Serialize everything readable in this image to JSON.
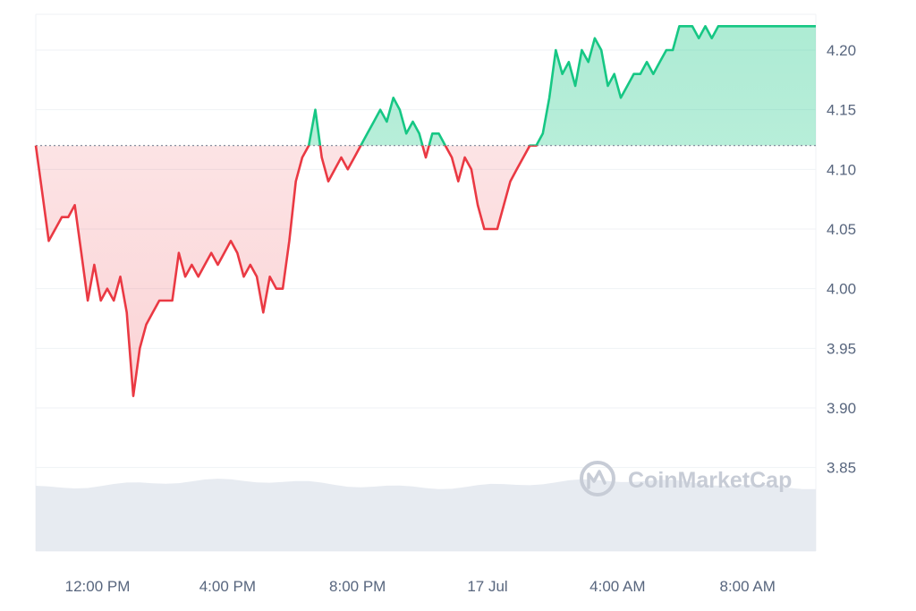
{
  "watermark": "CoinMarketCap",
  "colors": {
    "up": "#16c784",
    "down": "#ea3943",
    "up_fill": "#16c784",
    "down_fill": "#ea3943",
    "grid": "#eff2f5",
    "baseline": "#7a8496",
    "volume": "#e3e8ef"
  },
  "chart_data": {
    "type": "line",
    "baseline": 4.12,
    "x_ticks": [
      "12:00 PM",
      "4:00 PM",
      "8:00 PM",
      "17 Jul",
      "4:00 AM",
      "8:00 AM"
    ],
    "x_tick_hours": [
      12,
      16,
      20,
      24,
      28,
      32
    ],
    "y_ticks": [
      "4.20",
      "4.15",
      "4.10",
      "4.05",
      "4.00",
      "3.95",
      "3.90",
      "3.85"
    ],
    "ylim": [
      3.78,
      4.23
    ],
    "xlim": [
      10.1,
      34.1
    ],
    "series": [
      {
        "x": [
          10.1,
          10.3,
          10.5,
          10.7,
          10.9,
          11.1,
          11.3,
          11.5,
          11.7,
          11.9,
          12.1,
          12.3,
          12.5,
          12.7,
          12.9,
          13.1,
          13.3,
          13.5,
          13.7,
          13.9,
          14.1,
          14.3,
          14.5,
          14.7,
          14.9,
          15.1,
          15.3,
          15.5,
          15.7,
          15.9,
          16.1,
          16.3,
          16.5,
          16.7,
          16.9,
          17.1,
          17.3,
          17.5,
          17.7,
          17.9,
          18.1,
          18.3,
          18.5,
          18.7,
          18.9,
          19.1,
          19.3,
          19.5,
          19.7,
          19.9,
          20.1,
          20.3,
          20.5,
          20.7,
          20.9,
          21.1,
          21.3,
          21.5,
          21.7,
          21.9,
          22.1,
          22.3,
          22.5,
          22.7,
          22.9,
          23.1,
          23.3,
          23.5,
          23.7,
          23.9,
          24.1,
          24.3,
          24.5,
          24.7,
          24.9,
          25.1,
          25.3,
          25.5,
          25.7,
          25.9,
          26.1,
          26.3,
          26.5,
          26.7,
          26.9,
          27.1,
          27.3,
          27.5,
          27.7,
          27.9,
          28.1,
          28.3,
          28.5,
          28.7,
          28.9,
          29.1,
          29.3,
          29.5,
          29.7,
          29.9,
          30.1,
          30.3,
          30.5,
          30.7,
          30.9,
          31.1,
          31.3,
          31.5,
          31.7,
          31.9,
          32.1,
          32.3,
          32.5,
          32.7,
          32.9,
          33.1,
          33.3,
          33.5,
          33.7,
          33.9,
          34.1
        ],
        "y": [
          4.12,
          4.08,
          4.04,
          4.05,
          4.06,
          4.06,
          4.07,
          4.03,
          3.99,
          4.02,
          3.99,
          4.0,
          3.99,
          4.01,
          3.98,
          3.91,
          3.95,
          3.97,
          3.98,
          3.99,
          3.99,
          3.99,
          4.03,
          4.01,
          4.02,
          4.01,
          4.02,
          4.03,
          4.02,
          4.03,
          4.04,
          4.03,
          4.01,
          4.02,
          4.01,
          3.98,
          4.01,
          4.0,
          4.0,
          4.04,
          4.09,
          4.11,
          4.12,
          4.15,
          4.11,
          4.09,
          4.1,
          4.11,
          4.1,
          4.11,
          4.12,
          4.13,
          4.14,
          4.15,
          4.14,
          4.16,
          4.15,
          4.13,
          4.14,
          4.13,
          4.11,
          4.13,
          4.13,
          4.12,
          4.11,
          4.09,
          4.11,
          4.1,
          4.07,
          4.05,
          4.05,
          4.05,
          4.07,
          4.09,
          4.1,
          4.11,
          4.12,
          4.12,
          4.13,
          4.16,
          4.2,
          4.18,
          4.19,
          4.17,
          4.2,
          4.19,
          4.21,
          4.2,
          4.17,
          4.18,
          4.16,
          4.17,
          4.18,
          4.18,
          4.19,
          4.18,
          4.19,
          4.2,
          4.2,
          4.22,
          4.22,
          4.22,
          4.21,
          4.22,
          4.21,
          4.22,
          4.22,
          4.22,
          4.22,
          4.22,
          4.22,
          4.22,
          4.22,
          4.22,
          4.22,
          4.22,
          4.22,
          4.22,
          4.22,
          4.22,
          4.22
        ]
      }
    ],
    "grid": true
  }
}
